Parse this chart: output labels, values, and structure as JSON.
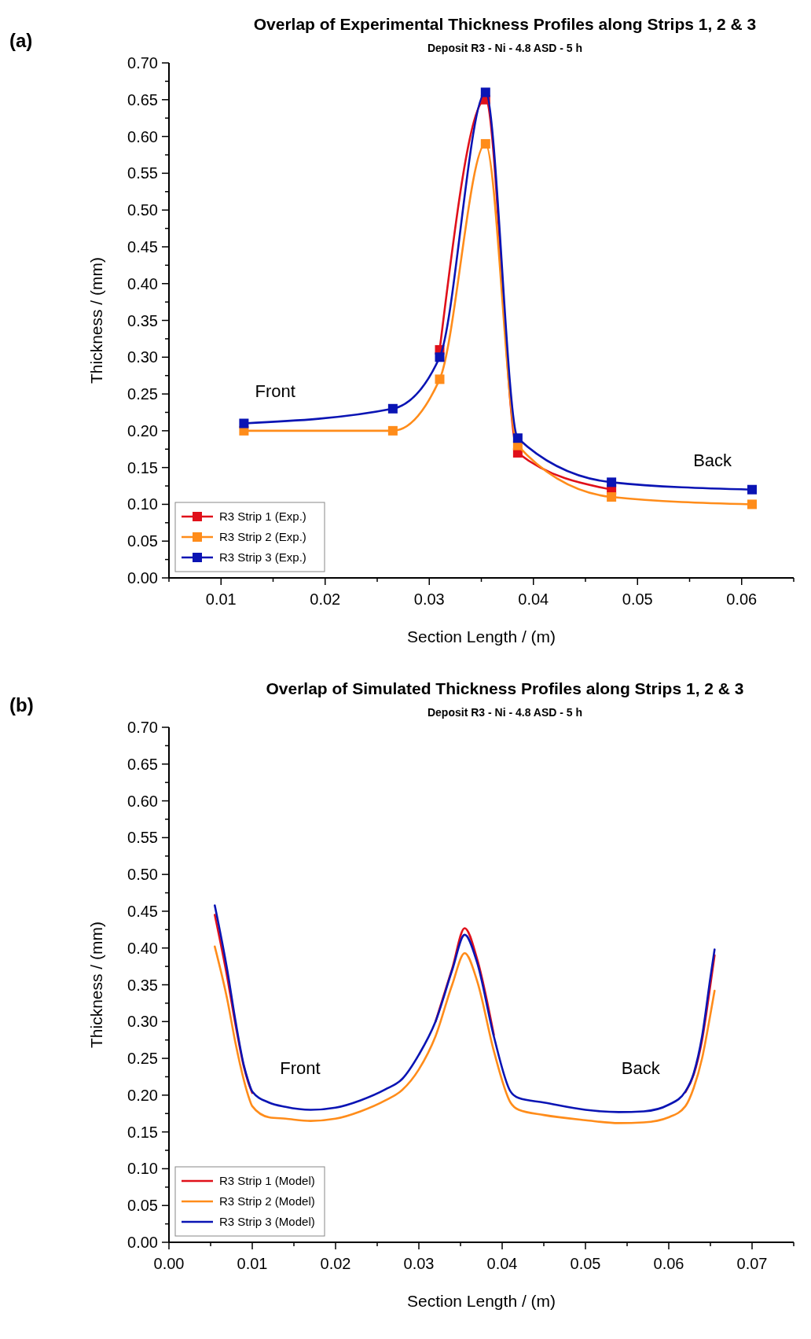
{
  "chart_data": [
    {
      "type": "line",
      "title": "Overlap of Experimental Thickness Profiles along Strips 1, 2 & 3",
      "subtitle": "Deposit R3 - Ni - 4.8 ASD - 5 h",
      "xlabel": "Section Length / (m)",
      "ylabel": "Thickness / (mm)",
      "annotations": [
        "(a)",
        "Front",
        "Back"
      ],
      "marker": "square",
      "legend": "bottom left",
      "grid": false,
      "xlim": [
        0.005,
        0.065
      ],
      "ylim": [
        0,
        0.7
      ],
      "xticks": [
        {
          "value": 0.005,
          "label": null
        },
        0.01,
        {
          "value": 0.015,
          "label": null
        },
        0.02,
        {
          "value": 0.025,
          "label": null
        },
        0.03,
        {
          "value": 0.035,
          "label": null
        },
        0.04,
        {
          "value": 0.045,
          "label": null
        },
        0.05,
        {
          "value": 0.055,
          "label": null
        },
        0.06,
        {
          "value": 0.065,
          "label": null
        }
      ],
      "yticks": [
        {
          "value": 0,
          "label": "0.00"
        },
        {
          "value": 0.025,
          "label": null
        },
        {
          "value": 0.05,
          "label": "0.05"
        },
        {
          "value": 0.075,
          "label": null
        },
        {
          "value": 0.1,
          "label": "0.10"
        },
        {
          "value": 0.125,
          "label": null
        },
        {
          "value": 0.15,
          "label": "0.15"
        },
        {
          "value": 0.175,
          "label": null
        },
        {
          "value": 0.2,
          "label": "0.20"
        },
        {
          "value": 0.225,
          "label": null
        },
        {
          "value": 0.25,
          "label": "0.25"
        },
        {
          "value": 0.275,
          "label": null
        },
        {
          "value": 0.3,
          "label": "0.30"
        },
        {
          "value": 0.325,
          "label": null
        },
        {
          "value": 0.35,
          "label": "0.35"
        },
        {
          "value": 0.375,
          "label": null
        },
        {
          "value": 0.4,
          "label": "0.40"
        },
        {
          "value": 0.425,
          "label": null
        },
        {
          "value": 0.45,
          "label": "0.45"
        },
        {
          "value": 0.475,
          "label": null
        },
        {
          "value": 0.5,
          "label": "0.50"
        },
        {
          "value": 0.525,
          "label": null
        },
        {
          "value": 0.55,
          "label": "0.55"
        },
        {
          "value": 0.575,
          "label": null
        },
        {
          "value": 0.6,
          "label": "0.60"
        },
        {
          "value": 0.625,
          "label": null
        },
        {
          "value": 0.65,
          "label": "0.65"
        },
        {
          "value": 0.675,
          "label": null
        },
        {
          "value": 0.7,
          "label": "0.70"
        }
      ],
      "x": [
        0.0122,
        0.0265,
        0.031,
        0.0354,
        0.0385,
        0.0475,
        0.061
      ],
      "series": [
        {
          "name": "R3 Strip 1 (Exp.)",
          "color": "#e0101a",
          "values": [
            null,
            null,
            0.31,
            0.65,
            0.17,
            0.12,
            null
          ]
        },
        {
          "name": "R3 Strip 2 (Exp.)",
          "color": "#ff8c1a",
          "values": [
            0.2,
            0.2,
            0.27,
            0.59,
            0.18,
            0.11,
            0.1
          ]
        },
        {
          "name": "R3 Strip 3 (Exp.)",
          "color": "#0a14b4",
          "values": [
            0.21,
            0.23,
            0.3,
            0.66,
            0.19,
            0.13,
            0.12
          ]
        }
      ]
    },
    {
      "type": "line",
      "title": "Overlap of Simulated Thickness Profiles along Strips 1, 2 & 3",
      "subtitle": "Deposit R3 - Ni - 4.8 ASD - 5 h",
      "xlabel": "Section Length / (m)",
      "ylabel": "Thickness / (mm)",
      "annotations": [
        "(b)",
        "Front",
        "Back"
      ],
      "legend": "bottom left",
      "grid": false,
      "xlim": [
        0,
        0.075
      ],
      "ylim": [
        0,
        0.7
      ],
      "xticks": [
        {
          "value": 0,
          "label": "0.00"
        },
        {
          "value": 0.005,
          "label": null
        },
        {
          "value": 0.01,
          "label": "0.01"
        },
        {
          "value": 0.015,
          "label": null
        },
        {
          "value": 0.02,
          "label": "0.02"
        },
        {
          "value": 0.025,
          "label": null
        },
        {
          "value": 0.03,
          "label": "0.03"
        },
        {
          "value": 0.035,
          "label": null
        },
        {
          "value": 0.04,
          "label": "0.04"
        },
        {
          "value": 0.045,
          "label": null
        },
        {
          "value": 0.05,
          "label": "0.05"
        },
        {
          "value": 0.055,
          "label": null
        },
        {
          "value": 0.06,
          "label": "0.06"
        },
        {
          "value": 0.065,
          "label": null
        },
        {
          "value": 0.07,
          "label": "0.07"
        },
        {
          "value": 0.075,
          "label": null
        }
      ],
      "yticks": [
        {
          "value": 0,
          "label": "0.00"
        },
        {
          "value": 0.025,
          "label": null
        },
        {
          "value": 0.05,
          "label": "0.05"
        },
        {
          "value": 0.075,
          "label": null
        },
        {
          "value": 0.1,
          "label": "0.10"
        },
        {
          "value": 0.125,
          "label": null
        },
        {
          "value": 0.15,
          "label": "0.15"
        },
        {
          "value": 0.175,
          "label": null
        },
        {
          "value": 0.2,
          "label": "0.20"
        },
        {
          "value": 0.225,
          "label": null
        },
        {
          "value": 0.25,
          "label": "0.25"
        },
        {
          "value": 0.275,
          "label": null
        },
        {
          "value": 0.3,
          "label": "0.30"
        },
        {
          "value": 0.325,
          "label": null
        },
        {
          "value": 0.35,
          "label": "0.35"
        },
        {
          "value": 0.375,
          "label": null
        },
        {
          "value": 0.4,
          "label": "0.40"
        },
        {
          "value": 0.425,
          "label": null
        },
        {
          "value": 0.45,
          "label": "0.45"
        },
        {
          "value": 0.475,
          "label": null
        },
        {
          "value": 0.5,
          "label": "0.50"
        },
        {
          "value": 0.525,
          "label": null
        },
        {
          "value": 0.55,
          "label": "0.55"
        },
        {
          "value": 0.575,
          "label": null
        },
        {
          "value": 0.6,
          "label": "0.60"
        },
        {
          "value": 0.625,
          "label": null
        },
        {
          "value": 0.65,
          "label": "0.65"
        },
        {
          "value": 0.675,
          "label": null
        },
        {
          "value": 0.7,
          "label": "0.70"
        }
      ],
      "x": [
        0.0055,
        0.007,
        0.008,
        0.009,
        0.0095,
        0.01,
        0.012,
        0.014,
        0.017,
        0.02,
        0.023,
        0.026,
        0.028,
        0.03,
        0.032,
        0.034,
        0.0355,
        0.037,
        0.039,
        0.041,
        0.042,
        0.045,
        0.05,
        0.054,
        0.057,
        0.06,
        0.062,
        0.063,
        0.064,
        0.065,
        0.0655
      ],
      "series": [
        {
          "name": "R3 Strip 1 (Model)",
          "color": "#e0101a",
          "values": [
            0.445,
            0.36,
            0.295,
            0.238,
            0.218,
            0.203,
            null,
            null,
            null,
            null,
            null,
            null,
            null,
            null,
            0.3,
            0.372,
            0.427,
            0.385,
            0.282,
            null,
            null,
            null,
            null,
            null,
            null,
            null,
            0.204,
            0.228,
            0.275,
            0.35,
            0.39
          ]
        },
        {
          "name": "R3 Strip 2 (Model)",
          "color": "#ff8c1a",
          "values": [
            0.402,
            0.33,
            0.27,
            0.22,
            0.2,
            0.185,
            0.17,
            0.168,
            0.165,
            0.168,
            0.178,
            0.193,
            0.207,
            0.235,
            0.28,
            0.35,
            0.393,
            0.355,
            0.26,
            0.19,
            0.18,
            0.173,
            0.166,
            0.162,
            0.163,
            0.17,
            0.185,
            0.21,
            0.25,
            0.31,
            0.342
          ]
        },
        {
          "name": "R3 Strip 3 (Model)",
          "color": "#0a14b4",
          "values": [
            0.458,
            0.37,
            0.3,
            0.24,
            0.22,
            0.205,
            0.19,
            0.184,
            0.18,
            0.183,
            0.193,
            0.208,
            0.222,
            0.255,
            0.3,
            0.37,
            0.418,
            0.38,
            0.28,
            0.205,
            0.196,
            0.19,
            0.18,
            0.177,
            0.178,
            0.187,
            0.205,
            0.23,
            0.28,
            0.36,
            0.398
          ]
        }
      ]
    }
  ]
}
